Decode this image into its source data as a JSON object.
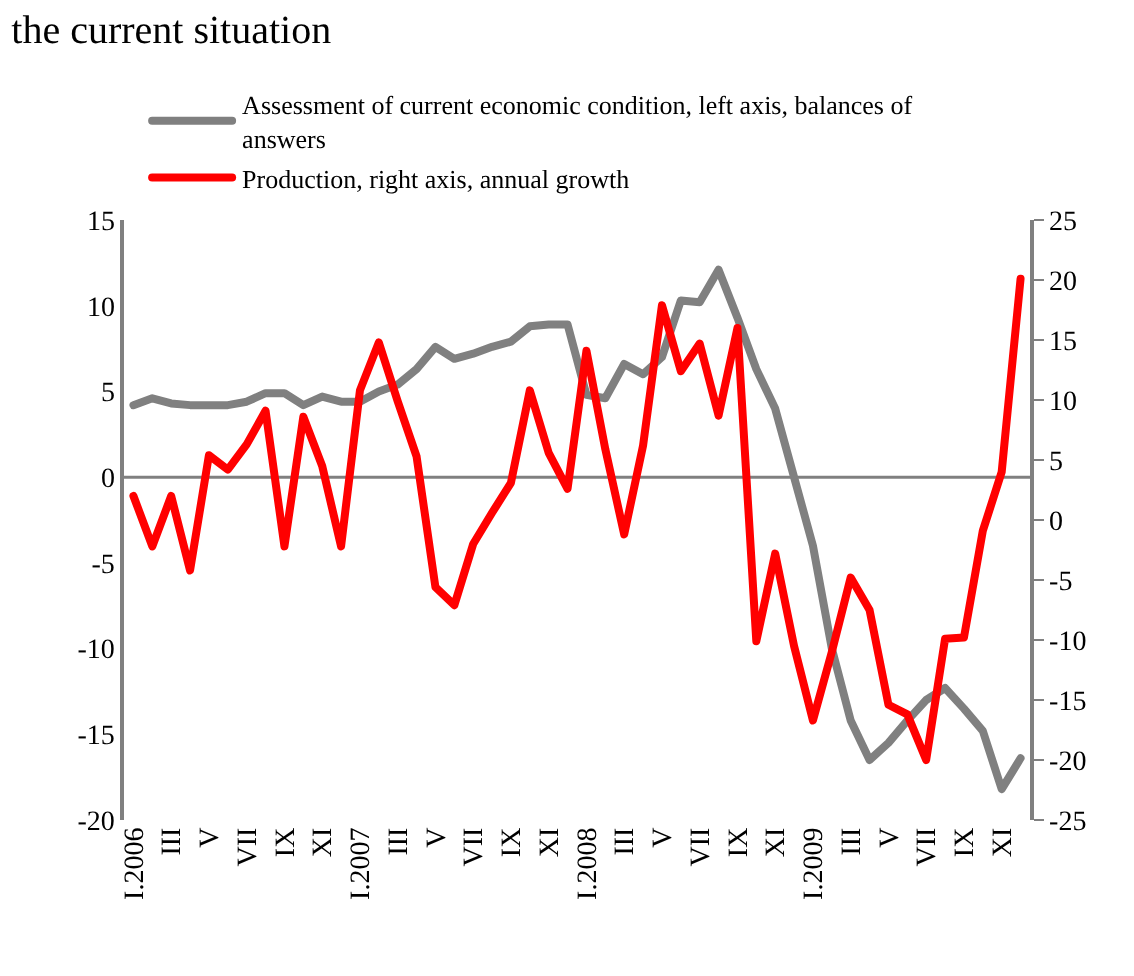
{
  "chart_data": {
    "type": "line",
    "title": "the current situation",
    "categories": [
      "I.2006",
      null,
      "III",
      null,
      "V",
      null,
      "VII",
      null,
      "IX",
      null,
      "XI",
      null,
      "I.2007",
      null,
      "III",
      null,
      "V",
      null,
      "VII",
      null,
      "IX",
      null,
      "XI",
      null,
      "I.2008",
      null,
      "III",
      null,
      "V",
      null,
      "VII",
      null,
      "IX",
      null,
      "XI",
      null,
      "I.2009",
      null,
      "III",
      null,
      "V",
      null,
      "VII",
      null,
      "IX",
      null,
      "XI",
      null
    ],
    "series": [
      {
        "name": "Assessment of current economic condition, left axis, balances of answers",
        "color": "#808080",
        "axis": "y",
        "values": [
          4.2,
          4.6,
          4.3,
          4.2,
          4.2,
          4.2,
          4.4,
          4.9,
          4.9,
          4.2,
          4.7,
          4.4,
          4.4,
          5.0,
          5.4,
          6.3,
          7.6,
          6.9,
          7.2,
          7.6,
          7.9,
          8.8,
          8.9,
          8.9,
          4.8,
          4.6,
          6.6,
          6.0,
          7.0,
          10.3,
          10.2,
          12.1,
          9.3,
          6.3,
          4.0,
          0.0,
          -4.0,
          -10.0,
          -14.2,
          -16.5,
          -15.5,
          -14.2,
          -13.0,
          -12.3,
          -13.5,
          -14.8,
          -18.2,
          -16.4
        ]
      },
      {
        "name": "Production, right axis, annual growth",
        "color": "#ff0000",
        "axis": "y2",
        "values": [
          2.0,
          -2.2,
          2.0,
          -4.2,
          5.4,
          4.2,
          6.3,
          9.1,
          -2.2,
          8.6,
          4.5,
          -2.2,
          10.8,
          14.8,
          9.9,
          5.3,
          -5.6,
          -7.1,
          -2.0,
          0.6,
          3.1,
          10.8,
          5.6,
          2.6,
          14.1,
          5.9,
          -1.2,
          6.2,
          17.9,
          12.4,
          14.7,
          8.7,
          16.0,
          -10.1,
          -2.8,
          -10.5,
          -16.7,
          -11.0,
          -4.8,
          -7.5,
          -15.4,
          -16.2,
          -20.0,
          -9.9,
          -9.8,
          -0.9,
          4.0,
          20.1
        ]
      }
    ],
    "ylim": [
      -20,
      15
    ],
    "yticks": [
      -20,
      -15,
      -10,
      -5,
      0,
      5,
      10,
      15
    ],
    "y2lim": [
      -25,
      25
    ],
    "y2ticks": [
      -25,
      -20,
      -15,
      -10,
      -5,
      0,
      5,
      10,
      15,
      20,
      25
    ],
    "ref_lines": [
      {
        "axis": "y",
        "value": 0,
        "color": "#808080"
      }
    ],
    "legend": "top",
    "grid": false,
    "marker": "none",
    "line_style": "solid"
  }
}
